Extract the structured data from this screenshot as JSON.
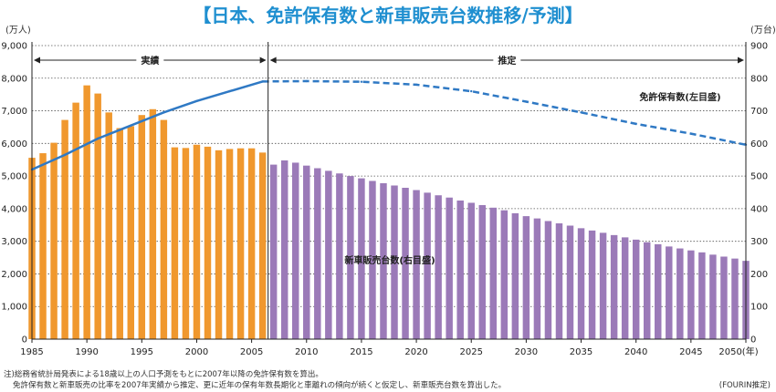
{
  "title": "【日本、免許保有数と新車販売台数推移/予測】",
  "left_unit": "(万人)",
  "right_unit": "(万台)",
  "segments": {
    "actual": "実績",
    "estimate": "推定"
  },
  "notes": [
    "注)総務省統計局発表による18歳以上の人口予測をもとに2007年以降の免許保有数を算出。",
    "免許保有数と新車販売の比率を2007年実績から推定、更に近年の保有年数長期化と車離れの傾向が続くと仮定し、新車販売台数を算出した。"
  ],
  "source": "(FOURIN推定)",
  "colors": {
    "actual_bar": "#f0982e",
    "forecast_bar": "#9b7ab8",
    "line": "#2f79c4",
    "title": "#1f8fd0"
  },
  "chart_data": {
    "type": "bar",
    "x_tick_labels": [
      "1985",
      "1990",
      "1995",
      "2000",
      "2005",
      "2010",
      "2015",
      "2020",
      "2025",
      "2030",
      "2035",
      "2040",
      "2045",
      "2050(年)"
    ],
    "left_axis": {
      "ylim": [
        0,
        9000
      ],
      "ticks": [
        "0",
        "1,000",
        "2,000",
        "3,000",
        "4,000",
        "5,000",
        "6,000",
        "7,000",
        "8,000",
        "9,000"
      ]
    },
    "right_axis": {
      "ylim": [
        0,
        900
      ],
      "ticks": [
        "0",
        "100",
        "200",
        "300",
        "400",
        "500",
        "600",
        "700",
        "800",
        "900"
      ]
    },
    "actual_years": [
      1985,
      2006
    ],
    "forecast_years": [
      2007,
      2050
    ],
    "series": [
      {
        "name": "新車販売台数(右目盛)",
        "kind": "bar",
        "axis": "right",
        "x": [
          1985,
          1986,
          1987,
          1988,
          1989,
          1990,
          1991,
          1992,
          1993,
          1994,
          1995,
          1996,
          1997,
          1998,
          1999,
          2000,
          2001,
          2002,
          2003,
          2004,
          2005,
          2006,
          2007,
          2008,
          2009,
          2010,
          2011,
          2012,
          2013,
          2014,
          2015,
          2016,
          2017,
          2018,
          2019,
          2020,
          2021,
          2022,
          2023,
          2024,
          2025,
          2026,
          2027,
          2028,
          2029,
          2030,
          2031,
          2032,
          2033,
          2034,
          2035,
          2036,
          2037,
          2038,
          2039,
          2040,
          2041,
          2042,
          2043,
          2044,
          2045,
          2046,
          2047,
          2048,
          2049,
          2050
        ],
        "values": [
          556,
          570,
          602,
          672,
          725,
          778,
          753,
          695,
          647,
          653,
          687,
          705,
          672,
          588,
          586,
          596,
          590,
          579,
          583,
          585,
          585,
          572,
          535,
          548,
          541,
          532,
          524,
          516,
          508,
          500,
          493,
          485,
          478,
          471,
          464,
          457,
          449,
          441,
          434,
          425,
          418,
          411,
          403,
          395,
          386,
          377,
          370,
          362,
          355,
          348,
          340,
          333,
          326,
          319,
          312,
          305,
          297,
          291,
          284,
          278,
          272,
          266,
          259,
          253,
          247,
          240
        ]
      },
      {
        "name": "免許保有数(左目盛)",
        "kind": "line",
        "axis": "left",
        "x": [
          1985,
          1988,
          1991,
          1994,
          1997,
          2000,
          2003,
          2006,
          2010,
          2015,
          2020,
          2025,
          2030,
          2035,
          2040,
          2045,
          2050
        ],
        "values": [
          5200,
          5650,
          6150,
          6550,
          6950,
          7300,
          7600,
          7900,
          7910,
          7890,
          7800,
          7600,
          7280,
          6950,
          6600,
          6300,
          5960
        ]
      }
    ]
  }
}
